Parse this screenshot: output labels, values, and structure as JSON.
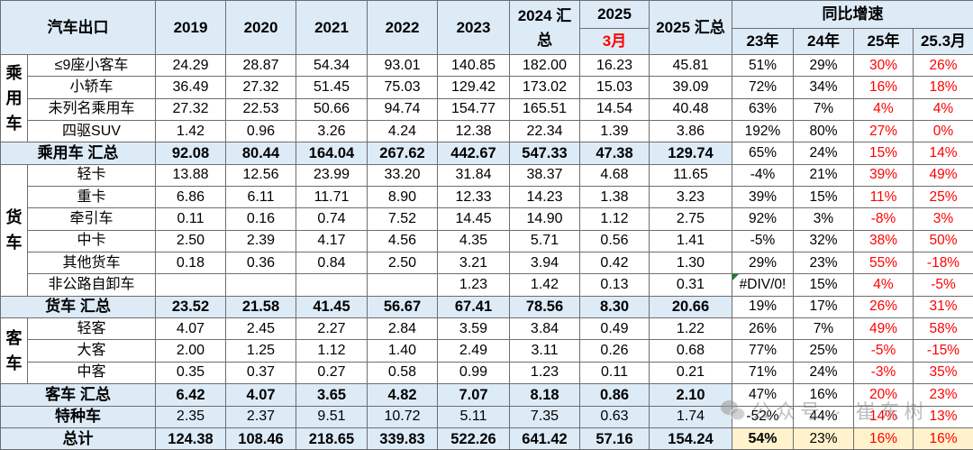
{
  "header": {
    "title": "汽车出口",
    "years": [
      "2019",
      "2020",
      "2021",
      "2022",
      "2023"
    ],
    "total_2024": "2024 汇总",
    "year_2025": "2025",
    "month_2025": "3月",
    "total_2025": "2025 汇总",
    "growth_title": "同比增速",
    "growth_columns": [
      "23年",
      "24年",
      "25年",
      "25.3月"
    ]
  },
  "sections": [
    {
      "group": "乘用车",
      "items": [
        {
          "label": "≤9座小客车",
          "values": [
            "24.29",
            "28.87",
            "54.34",
            "93.01",
            "140.85",
            "182.00",
            "16.23",
            "45.81"
          ],
          "growth": [
            "51%",
            "29%",
            "30%",
            "26%"
          ]
        },
        {
          "label": "小轿车",
          "values": [
            "36.49",
            "27.32",
            "51.45",
            "75.03",
            "129.42",
            "173.02",
            "15.03",
            "39.09"
          ],
          "growth": [
            "72%",
            "34%",
            "16%",
            "18%"
          ]
        },
        {
          "label": "未列名乘用车",
          "values": [
            "27.32",
            "22.53",
            "50.66",
            "94.74",
            "154.77",
            "165.51",
            "14.54",
            "40.48"
          ],
          "growth": [
            "63%",
            "7%",
            "4%",
            "4%"
          ]
        },
        {
          "label": "四驱SUV",
          "values": [
            "1.42",
            "0.96",
            "3.26",
            "4.24",
            "12.38",
            "22.34",
            "1.39",
            "3.86"
          ],
          "growth": [
            "192%",
            "80%",
            "27%",
            "0%"
          ]
        }
      ],
      "subtotal": {
        "label": "乘用车 汇总",
        "values": [
          "92.08",
          "80.44",
          "164.04",
          "267.62",
          "442.67",
          "547.33",
          "47.38",
          "129.74"
        ],
        "growth": [
          "65%",
          "24%",
          "15%",
          "14%"
        ]
      }
    },
    {
      "group": "货车",
      "items": [
        {
          "label": "轻卡",
          "values": [
            "13.88",
            "12.56",
            "23.99",
            "33.20",
            "31.84",
            "38.37",
            "4.68",
            "11.65"
          ],
          "growth": [
            "-4%",
            "21%",
            "39%",
            "49%"
          ]
        },
        {
          "label": "重卡",
          "values": [
            "6.86",
            "6.11",
            "11.71",
            "8.90",
            "12.33",
            "14.23",
            "1.38",
            "3.23"
          ],
          "growth": [
            "39%",
            "15%",
            "11%",
            "25%"
          ]
        },
        {
          "label": "牵引车",
          "values": [
            "0.11",
            "0.16",
            "0.74",
            "7.52",
            "14.45",
            "14.90",
            "1.12",
            "2.75"
          ],
          "growth": [
            "92%",
            "3%",
            "-8%",
            "3%"
          ]
        },
        {
          "label": "中卡",
          "values": [
            "2.50",
            "2.39",
            "4.17",
            "4.56",
            "4.35",
            "5.71",
            "0.56",
            "1.41"
          ],
          "growth": [
            "-5%",
            "32%",
            "38%",
            "50%"
          ]
        },
        {
          "label": "其他货车",
          "values": [
            "0.18",
            "0.36",
            "0.84",
            "2.50",
            "3.21",
            "3.94",
            "0.42",
            "1.30"
          ],
          "growth": [
            "29%",
            "23%",
            "55%",
            "-18%"
          ]
        },
        {
          "label": "非公路自卸车",
          "values": [
            "",
            "",
            "",
            "",
            "1.23",
            "1.42",
            "0.13",
            "0.31"
          ],
          "growth": [
            "#DIV/0!",
            "15%",
            "4%",
            "-5%"
          ]
        }
      ],
      "subtotal": {
        "label": "货车 汇总",
        "values": [
          "23.52",
          "21.58",
          "41.45",
          "56.67",
          "67.41",
          "78.56",
          "8.30",
          "20.66"
        ],
        "growth": [
          "19%",
          "17%",
          "26%",
          "31%"
        ]
      }
    },
    {
      "group": "客车",
      "items": [
        {
          "label": "轻客",
          "values": [
            "4.07",
            "2.45",
            "2.27",
            "2.84",
            "3.59",
            "3.84",
            "0.49",
            "1.22"
          ],
          "growth": [
            "26%",
            "7%",
            "49%",
            "58%"
          ]
        },
        {
          "label": "大客",
          "values": [
            "2.00",
            "1.25",
            "1.12",
            "1.40",
            "2.49",
            "3.11",
            "0.26",
            "0.68"
          ],
          "growth": [
            "77%",
            "25%",
            "-5%",
            "-15%"
          ]
        },
        {
          "label": "中客",
          "values": [
            "0.35",
            "0.37",
            "0.27",
            "0.58",
            "0.99",
            "1.23",
            "0.11",
            "0.21"
          ],
          "growth": [
            "71%",
            "24%",
            "-3%",
            "35%"
          ]
        }
      ],
      "subtotal": {
        "label": "客车 汇总",
        "values": [
          "6.42",
          "4.07",
          "3.65",
          "4.82",
          "7.07",
          "8.18",
          "0.86",
          "2.10"
        ],
        "growth": [
          "47%",
          "16%",
          "20%",
          "23%"
        ]
      }
    }
  ],
  "special": {
    "label": "特种车",
    "values": [
      "2.35",
      "2.37",
      "9.51",
      "10.72",
      "5.11",
      "7.35",
      "0.63",
      "1.74"
    ],
    "growth": [
      "-52%",
      "44%",
      "14%",
      "13%"
    ]
  },
  "total": {
    "label": "总计",
    "values": [
      "124.38",
      "108.46",
      "218.65",
      "339.83",
      "522.26",
      "641.42",
      "57.16",
      "154.24"
    ],
    "growth": [
      "54%",
      "23%",
      "16%",
      "16%"
    ]
  },
  "watermark": "公众号 · 崔东树",
  "colors": {
    "header_fill": "#DDEBF7",
    "subtotal_fill": "#DDEBF7",
    "total_growth_fill": "#FFF2CC",
    "red_text": "#FF0000"
  }
}
